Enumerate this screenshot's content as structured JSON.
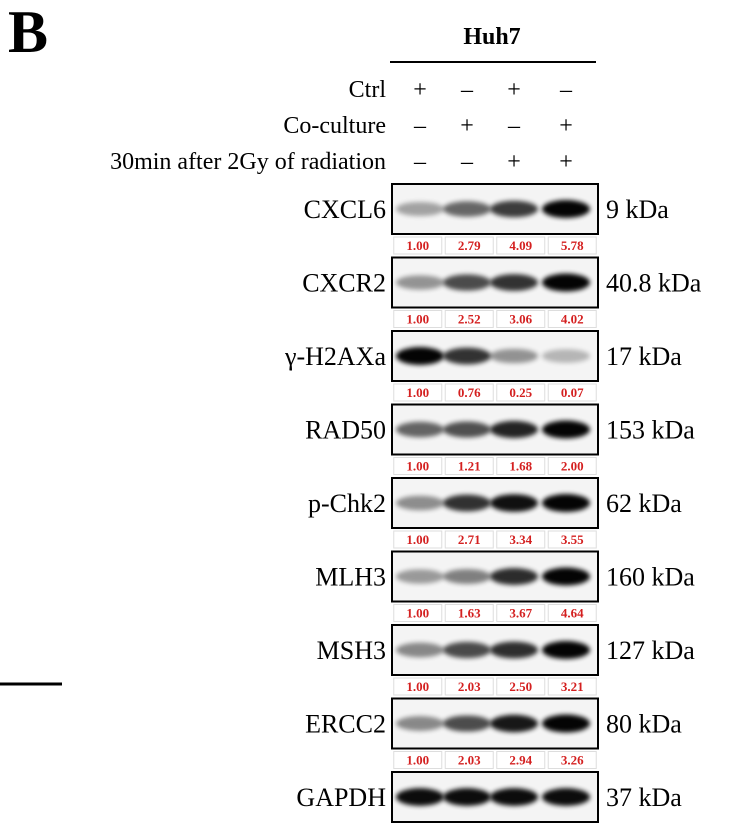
{
  "panel_label": "B",
  "cell_line": "Huh7",
  "conditions": [
    {
      "label": "Ctrl",
      "signs": [
        "+",
        "–",
        "+",
        "–"
      ]
    },
    {
      "label": "Co-culture",
      "signs": [
        "–",
        "+",
        "–",
        "+"
      ]
    },
    {
      "label": "30min after 2Gy of radiation",
      "signs": [
        "–",
        "–",
        "+",
        "+"
      ]
    }
  ],
  "blots": [
    {
      "name": "CXCL6",
      "size": "9 kDa",
      "quant": [
        "1.00",
        "2.79",
        "4.09",
        "5.78"
      ]
    },
    {
      "name": "CXCR2",
      "size": "40.8 kDa",
      "quant": [
        "1.00",
        "2.52",
        "3.06",
        "4.02"
      ]
    },
    {
      "name": "γ-H2AXa",
      "size": "17 kDa",
      "quant": [
        "1.00",
        "0.76",
        "0.25",
        "0.07"
      ]
    },
    {
      "name": "RAD50",
      "size": "153 kDa",
      "quant": [
        "1.00",
        "1.21",
        "1.68",
        "2.00"
      ]
    },
    {
      "name": "p-Chk2",
      "size": "62 kDa",
      "quant": [
        "1.00",
        "2.71",
        "3.34",
        "3.55"
      ]
    },
    {
      "name": "MLH3",
      "size": "160 kDa",
      "quant": [
        "1.00",
        "1.63",
        "3.67",
        "4.64"
      ]
    },
    {
      "name": "MSH3",
      "size": "127 kDa",
      "quant": [
        "1.00",
        "2.03",
        "2.50",
        "3.21"
      ]
    },
    {
      "name": "ERCC2",
      "size": "80 kDa",
      "quant": [
        "1.00",
        "2.03",
        "2.94",
        "3.26"
      ]
    },
    {
      "name": "GAPDH",
      "size": "37 kDa"
    }
  ]
}
